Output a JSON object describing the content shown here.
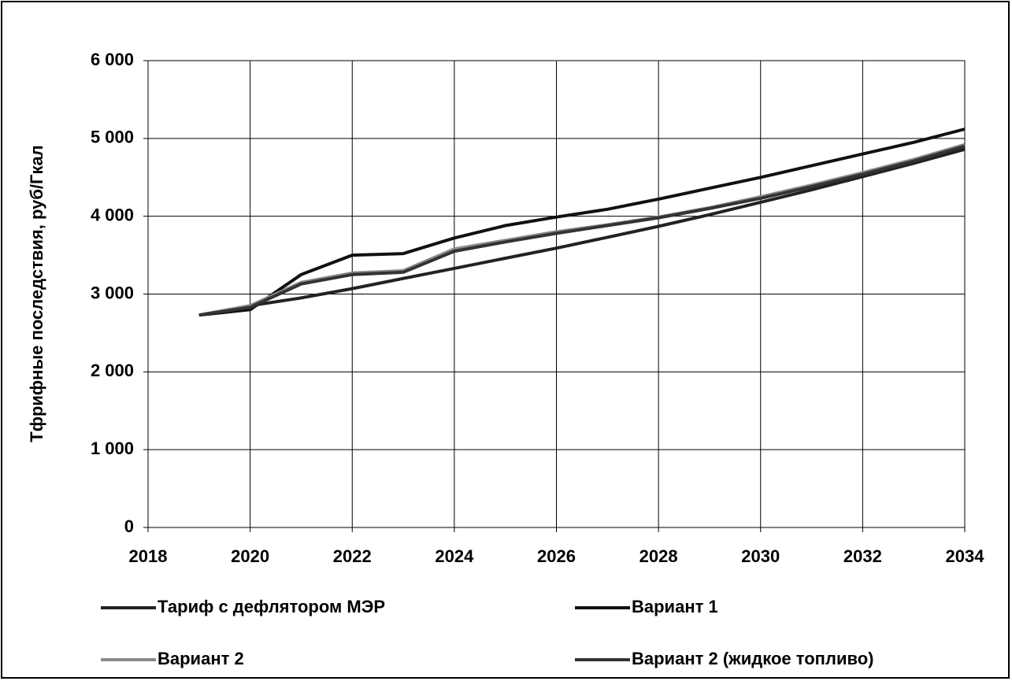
{
  "chart_data": {
    "type": "line",
    "y_label": "Тфрифные последствия, руб/Гкал",
    "x": [
      2019,
      2020,
      2021,
      2022,
      2023,
      2024,
      2025,
      2026,
      2027,
      2028,
      2029,
      2030,
      2031,
      2032,
      2033,
      2034
    ],
    "series": [
      {
        "name": "Тариф с дефлятором МЭР",
        "color": "#222222",
        "values": [
          2730,
          2850,
          2950,
          3070,
          3200,
          3330,
          3460,
          3590,
          3730,
          3870,
          4020,
          4180,
          4340,
          4510,
          4680,
          4860
        ]
      },
      {
        "name": "Вариант 1",
        "color": "#111111",
        "values": [
          2730,
          2800,
          3250,
          3500,
          3520,
          3720,
          3880,
          3990,
          4090,
          4220,
          4360,
          4500,
          4650,
          4800,
          4950,
          5120
        ]
      },
      {
        "name": "Вариант 2",
        "color": "#8a8a8a",
        "values": [
          2730,
          2850,
          3150,
          3270,
          3300,
          3580,
          3690,
          3800,
          3890,
          3990,
          4110,
          4250,
          4400,
          4560,
          4730,
          4920
        ]
      },
      {
        "name": "Вариант 2 (жидкое топливо)",
        "color": "#333333",
        "values": [
          2730,
          2830,
          3130,
          3250,
          3280,
          3550,
          3670,
          3780,
          3880,
          3980,
          4100,
          4230,
          4380,
          4540,
          4710,
          4900
        ]
      }
    ],
    "xlim": [
      2018,
      2034
    ],
    "xticks": [
      2018,
      2020,
      2022,
      2024,
      2026,
      2028,
      2030,
      2032,
      2034
    ],
    "ylim": [
      0,
      6000
    ],
    "yticks": [
      0,
      {
        "value": 1000,
        "label": "1 000"
      },
      {
        "value": 2000,
        "label": "2 000"
      },
      {
        "value": 3000,
        "label": "3 000"
      },
      {
        "value": 4000,
        "label": "4 000"
      },
      {
        "value": 5000,
        "label": "5 000"
      },
      {
        "value": 6000,
        "label": "6 000"
      }
    ],
    "grid": true
  }
}
